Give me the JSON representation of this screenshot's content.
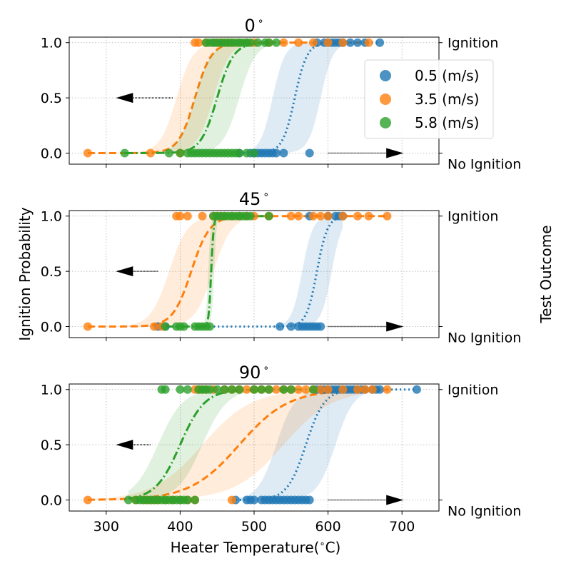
{
  "chart_data": {
    "type": "scatter",
    "xlabel": "Heater Temperature(",
    "xlabel_unit": "C)",
    "degree_symbol": "∘",
    "ylabel": "Ignition Probability",
    "ylabel_right": "Test Outcome",
    "right_tick_labels": [
      "Ignition",
      "No Ignition"
    ],
    "xlim": [
      250,
      750
    ],
    "ylim": [
      -0.1,
      1.05
    ],
    "xticks": [
      300,
      400,
      500,
      600,
      700
    ],
    "yticks": [
      0.0,
      0.5,
      1.0
    ],
    "ytick_labels": [
      "0.0",
      "0.5",
      "1.0"
    ],
    "grid": true,
    "legend": {
      "placement": "right of top panel",
      "entries": [
        {
          "label": "0.5 (m/s)",
          "color": "#1f77b4"
        },
        {
          "label": "3.5 (m/s)",
          "color": "#ff7f0e"
        },
        {
          "label": "5.8 (m/s)",
          "color": "#2ca02c"
        }
      ]
    },
    "annotations": {
      "left_arrow_end": 315,
      "arrow_y": 0.5,
      "right_arrow": {
        "from": 600,
        "to": 700,
        "y": 0.0
      }
    },
    "panels": [
      {
        "title_value": "0",
        "left_arrow_start": 390,
        "series": [
          {
            "name": "0.5 (m/s)",
            "color": "#1f77b4",
            "style": "dotted",
            "mid": 555,
            "k": 0.12,
            "band": [
              525,
              590
            ],
            "ign_x": [
              585,
              595,
              600,
              605,
              610,
              615,
              620,
              630,
              640,
              650,
              670
            ],
            "no_x": [
              480,
              495,
              500,
              505,
              510,
              515,
              520,
              525,
              530,
              540,
              575
            ]
          },
          {
            "name": "3.5 (m/s)",
            "color": "#ff7f0e",
            "style": "dashed",
            "mid": 420,
            "k": 0.09,
            "band": [
              395,
              445
            ],
            "ign_x": [
              420,
              425,
              435,
              445,
              450,
              455,
              460,
              465,
              470,
              480,
              490,
              500,
              520,
              540,
              560,
              580,
              600,
              620,
              655
            ],
            "no_x": [
              275,
              360,
              400
            ]
          },
          {
            "name": "5.8 (m/s)",
            "color": "#2ca02c",
            "style": "dashdot",
            "mid": 450,
            "k": 0.09,
            "band": [
              420,
              480
            ],
            "ign_x": [
              435,
              440,
              445,
              450,
              455,
              460,
              465,
              470,
              475,
              480,
              485,
              490,
              495,
              505,
              515,
              520,
              530
            ],
            "no_x": [
              325,
              385,
              400,
              410,
              415,
              420,
              425,
              430,
              435,
              440,
              445,
              450,
              455,
              460,
              465,
              470,
              475,
              480,
              490,
              500
            ]
          }
        ]
      },
      {
        "title_value": "45",
        "left_arrow_start": 370,
        "series": [
          {
            "name": "0.5 (m/s)",
            "color": "#1f77b4",
            "style": "dotted",
            "mid": 585,
            "k": 0.14,
            "band": [
              565,
              605
            ],
            "ign_x": [
              575,
              600,
              610,
              615,
              620
            ],
            "no_x": [
              370,
              380,
              535,
              550,
              560,
              565,
              570,
              575,
              580,
              585,
              590
            ]
          },
          {
            "name": "3.5 (m/s)",
            "color": "#ff7f0e",
            "style": "dashed",
            "mid": 415,
            "k": 0.08,
            "band": [
              385,
              445
            ],
            "ign_x": [
              395,
              400,
              410,
              430,
              445,
              450,
              455,
              460,
              470,
              480,
              490,
              500,
              520,
              550,
              560,
              580,
              590,
              600,
              620,
              640,
              655,
              680
            ],
            "no_x": [
              275,
              365,
              375
            ]
          },
          {
            "name": "5.8 (m/s)",
            "color": "#2ca02c",
            "style": "dashdot",
            "mid": 442,
            "k": 0.6,
            "band": [
              438,
              446
            ],
            "ign_x": [
              445,
              450,
              455,
              460,
              465,
              470,
              475,
              480,
              485,
              490,
              495,
              520
            ],
            "no_x": [
              380,
              395,
              400,
              405,
              420,
              425,
              430,
              435,
              440
            ]
          }
        ]
      },
      {
        "title_value": "90",
        "left_arrow_start": 360,
        "series": [
          {
            "name": "0.5 (m/s)",
            "color": "#1f77b4",
            "style": "dotted",
            "mid": 570,
            "k": 0.08,
            "band": [
              530,
              610
            ],
            "ign_x": [
              585,
              590,
              595,
              600,
              605,
              610,
              615,
              620,
              625,
              630,
              635,
              640,
              645,
              650,
              660,
              665,
              670,
              720
            ],
            "no_x": [
              475,
              490,
              495,
              500,
              510,
              515,
              520,
              525,
              530,
              535,
              540,
              545,
              550,
              555,
              560,
              565,
              570,
              575
            ]
          },
          {
            "name": "3.5 (m/s)",
            "color": "#ff7f0e",
            "style": "dashed",
            "mid": 480,
            "k": 0.03,
            "band": [
              430,
              540
            ],
            "ign_x": [
              420,
              425,
              430,
              435,
              445,
              460,
              470,
              480,
              490,
              500,
              510,
              520,
              530,
              540,
              550,
              560,
              570,
              580,
              590,
              600,
              620,
              640,
              650,
              660,
              680
            ],
            "no_x": [
              275,
              340,
              350,
              355,
              360,
              365,
              370,
              380,
              390,
              400,
              410,
              420,
              470
            ]
          },
          {
            "name": "5.8 (m/s)",
            "color": "#2ca02c",
            "style": "dashdot",
            "mid": 400,
            "k": 0.06,
            "band": [
              370,
              430
            ],
            "ign_x": [
              375,
              380,
              400,
              410,
              425,
              430,
              435,
              440,
              450,
              460,
              470,
              480,
              500,
              510,
              520,
              540,
              550,
              580
            ],
            "no_x": [
              330,
              340,
              345,
              350,
              355,
              360,
              365,
              370,
              375,
              380,
              385,
              390,
              395,
              400,
              405,
              410,
              420
            ]
          }
        ]
      }
    ]
  }
}
